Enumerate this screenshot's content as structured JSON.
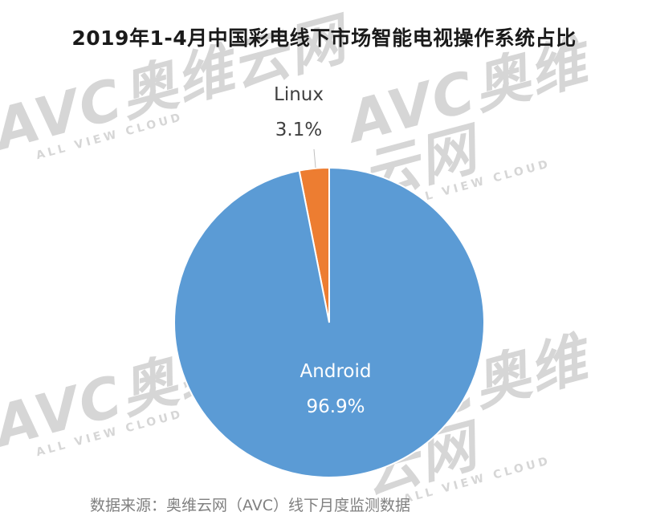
{
  "title": "2019年1-4月中国彩电线下市场智能电视操作系统占比",
  "source": "数据来源：奥维云网（AVC）线下月度监测数据",
  "watermark": {
    "logo": "AVC奥维云网",
    "tagline": "ALL VIEW CLOUD"
  },
  "chart_data": {
    "type": "pie",
    "title": "2019年1-4月中国彩电线下市场智能电视操作系统占比",
    "slices": [
      {
        "name": "Linux",
        "label": "3.1%",
        "value": 3.1,
        "color": "#ED7D31"
      },
      {
        "name": "Android",
        "label": "96.9%",
        "value": 96.9,
        "color": "#5B9BD5"
      }
    ],
    "start_angle_deg": 0,
    "direction": "clockwise"
  }
}
